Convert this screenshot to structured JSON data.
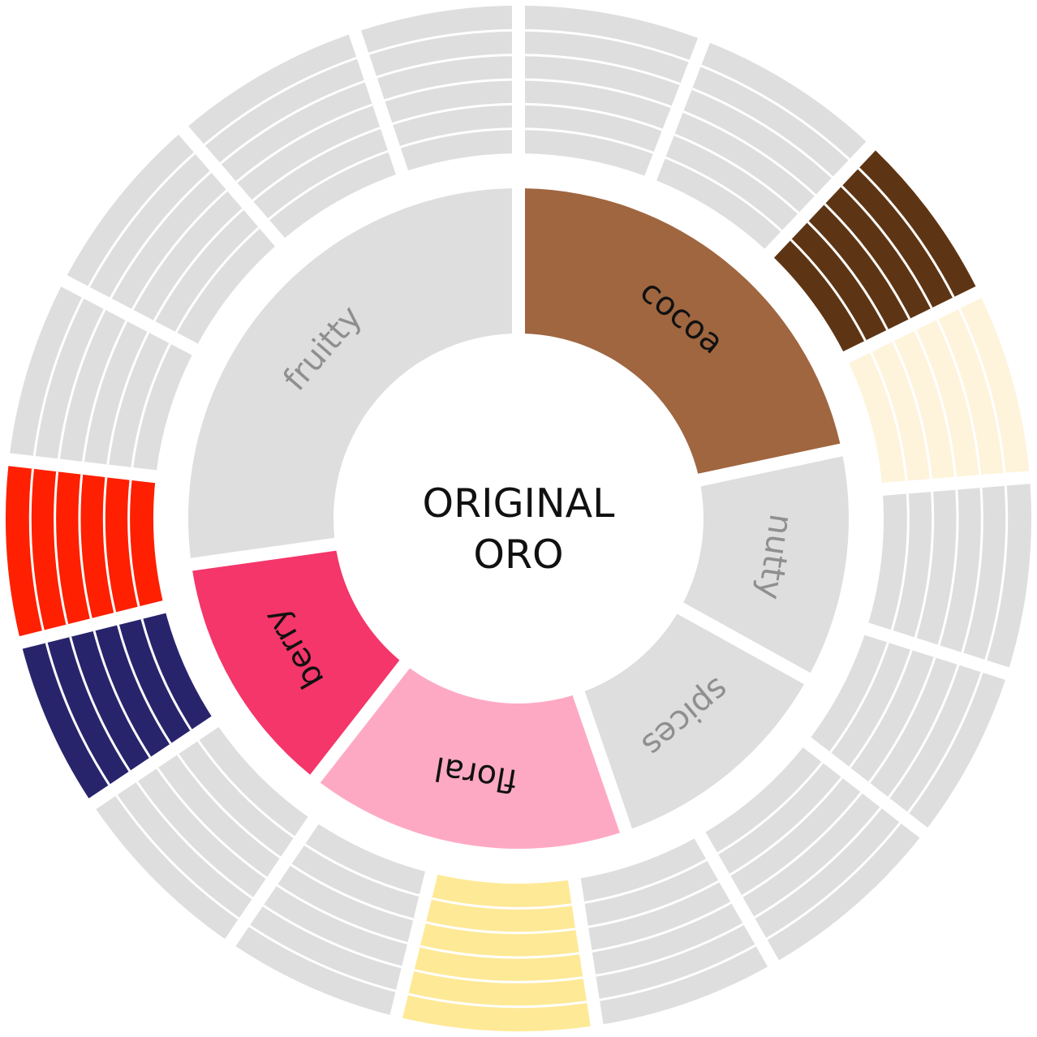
{
  "center": {
    "line1": "ORIGINAL",
    "line2": "ORO"
  },
  "colors": {
    "inactive": "#dedede",
    "background": "#ffffff",
    "inactive_label": "#8f8f8f",
    "active_label": "#111111"
  },
  "inner_ring": [
    {
      "label": "cocoa",
      "active": true,
      "color": "#9f6640",
      "start_deg": 0,
      "end_deg": 78
    },
    {
      "label": "nutty",
      "active": false,
      "color": "#dedede",
      "start_deg": 78,
      "end_deg": 119
    },
    {
      "label": "spices",
      "active": false,
      "color": "#dedede",
      "start_deg": 119,
      "end_deg": 161
    },
    {
      "label": "floral",
      "active": true,
      "color": "#fea9c4",
      "start_deg": 161,
      "end_deg": 218
    },
    {
      "label": "berry",
      "active": true,
      "color": "#f4366a",
      "start_deg": 218,
      "end_deg": 262
    },
    {
      "label": "fruitty",
      "active": false,
      "color": "#dedede",
      "start_deg": 262,
      "end_deg": 360
    }
  ],
  "outer_ring": [
    {
      "start_deg": 0,
      "end_deg": 21.2,
      "active": false,
      "color": "#dedede"
    },
    {
      "start_deg": 21.2,
      "end_deg": 43.4,
      "active": false,
      "color": "#dedede"
    },
    {
      "start_deg": 43.4,
      "end_deg": 63.8,
      "active": true,
      "color": "#5e3514"
    },
    {
      "start_deg": 63.8,
      "end_deg": 85.4,
      "active": true,
      "color": "#fef4dc"
    },
    {
      "start_deg": 85.4,
      "end_deg": 107.6,
      "active": false,
      "color": "#dedede"
    },
    {
      "start_deg": 107.6,
      "end_deg": 127.8,
      "active": false,
      "color": "#dedede"
    },
    {
      "start_deg": 127.8,
      "end_deg": 150.2,
      "active": false,
      "color": "#dedede"
    },
    {
      "start_deg": 150.2,
      "end_deg": 171.2,
      "active": false,
      "color": "#dedede"
    },
    {
      "start_deg": 171.2,
      "end_deg": 193.8,
      "active": true,
      "color": "#fee996"
    },
    {
      "start_deg": 193.8,
      "end_deg": 214.2,
      "active": false,
      "color": "#dedede"
    },
    {
      "start_deg": 214.2,
      "end_deg": 236.2,
      "active": false,
      "color": "#dedede"
    },
    {
      "start_deg": 236.2,
      "end_deg": 256.0,
      "active": true,
      "color": "#28246c"
    },
    {
      "start_deg": 256.0,
      "end_deg": 276.6,
      "active": true,
      "color": "#fe2000"
    },
    {
      "start_deg": 276.6,
      "end_deg": 297.6,
      "active": false,
      "color": "#dedede"
    },
    {
      "start_deg": 297.6,
      "end_deg": 319.2,
      "active": false,
      "color": "#dedede"
    },
    {
      "start_deg": 319.2,
      "end_deg": 341.4,
      "active": false,
      "color": "#dedede"
    },
    {
      "start_deg": 341.4,
      "end_deg": 360,
      "active": false,
      "color": "#dedede"
    }
  ]
}
